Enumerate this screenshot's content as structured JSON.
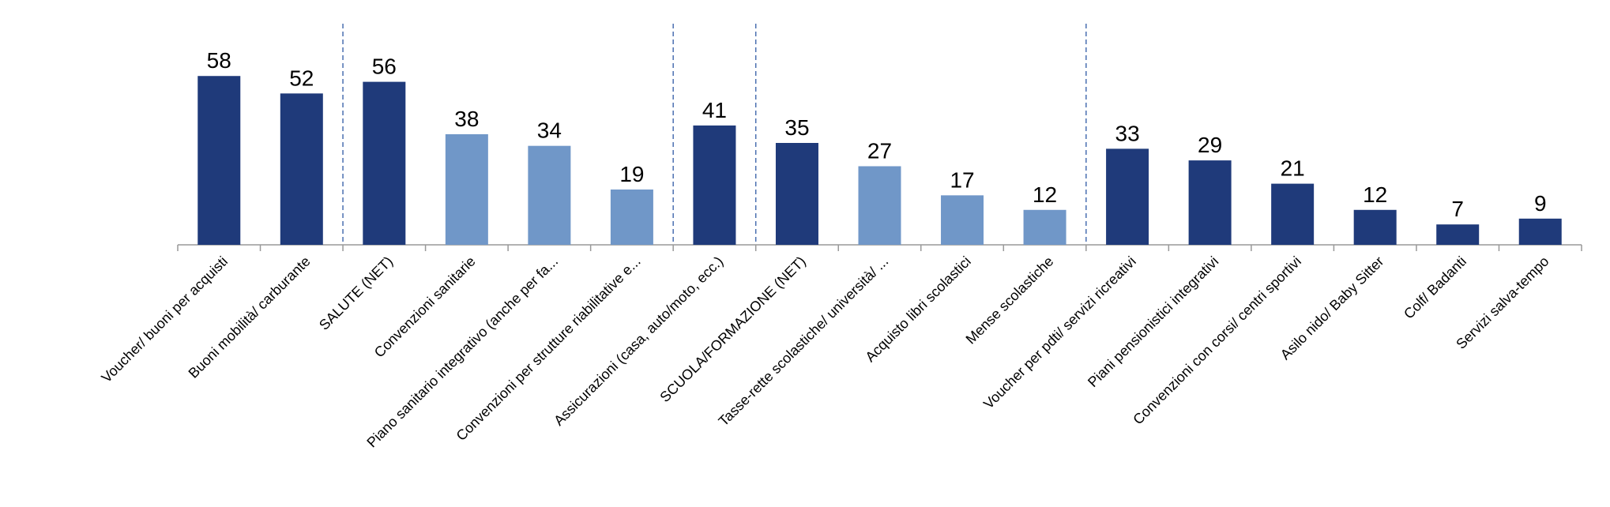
{
  "chart_data": {
    "type": "bar",
    "categories": [
      "Voucher/ buoni per acquisti",
      "Buoni mobilità/ carburante",
      "SALUTE (NET)",
      "Convenzioni sanitarie",
      "Piano sanitario integrativo (anche per fa...",
      "Convenzioni per strutture riabilitative e...",
      "Assicurazioni (casa, auto/moto, ecc.)",
      "SCUOLA/FORMAZIONE (NET)",
      "Tasse-rette scolastiche/ università/ ...",
      "Acquisto libri scolastici",
      "Mense scolastiche",
      "Voucher per pdti/ servizi ricreativi",
      "Piani pensionistici integrativi",
      "Convenzioni con corsi/ centri sportivi",
      "Asilo nido/ Baby Sitter",
      "Colf/ Badanti",
      "Servizi salva-tempo"
    ],
    "values": [
      58,
      52,
      56,
      38,
      34,
      19,
      41,
      35,
      27,
      17,
      12,
      33,
      29,
      21,
      12,
      7,
      9
    ],
    "colors": [
      "#1f3a7a",
      "#1f3a7a",
      "#1f3a7a",
      "#7097c8",
      "#7097c8",
      "#7097c8",
      "#1f3a7a",
      "#1f3a7a",
      "#7097c8",
      "#7097c8",
      "#7097c8",
      "#1f3a7a",
      "#1f3a7a",
      "#1f3a7a",
      "#1f3a7a",
      "#1f3a7a",
      "#1f3a7a"
    ],
    "ylim": [
      0,
      70
    ]
  }
}
